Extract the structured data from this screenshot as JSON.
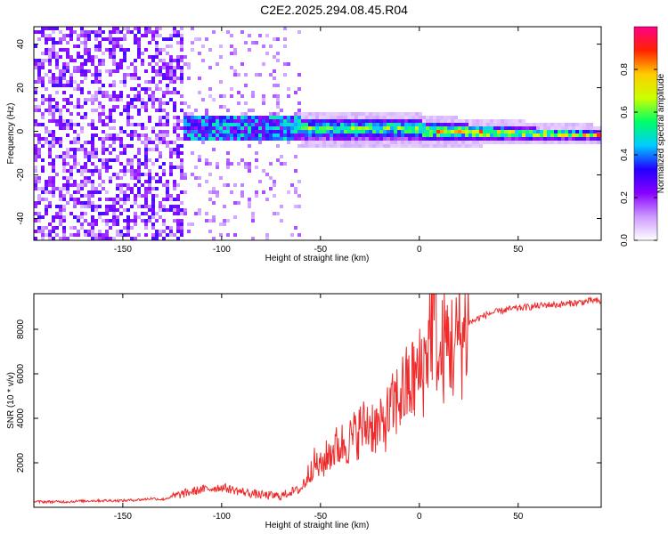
{
  "title": "C2E2.2025.294.08.45.R04",
  "colors": {
    "snr_line": "#ee2a2a",
    "axis": "#000000"
  },
  "chart_data": [
    {
      "type": "heatmap",
      "xlabel": "Height of straight line (km)",
      "ylabel": "Frequency (Hz)",
      "xlim": [
        -195,
        92
      ],
      "ylim": [
        -50,
        48
      ],
      "xticks": [
        -150,
        -100,
        -50,
        0,
        50
      ],
      "yticks": [
        -40,
        -20,
        0,
        20,
        40
      ],
      "colorbar": {
        "label": "Normalized spectral amplitude",
        "range": [
          0,
          1
        ],
        "ticks": [
          0.0,
          0.2,
          0.4,
          0.6,
          0.8
        ],
        "colormap": [
          "#ffffff",
          "#cc99ff",
          "#8800ff",
          "#2200ff",
          "#00ccff",
          "#00ff66",
          "#ccff00",
          "#ffcc00",
          "#ff2200",
          "#ff0088"
        ]
      },
      "description_regions": [
        {
          "x_range": [
            -195,
            -120
          ],
          "freq_range": [
            -50,
            48
          ],
          "amplitude": 0.15
        },
        {
          "x_range": [
            -120,
            -60
          ],
          "freq_range": [
            -10,
            10
          ],
          "amplitude": 0.35
        },
        {
          "x_range": [
            -60,
            0
          ],
          "freq_range": [
            -6,
            6
          ],
          "amplitude": 0.55
        },
        {
          "x_range": [
            0,
            92
          ],
          "freq_range": [
            -3,
            3
          ],
          "amplitude": 0.7
        }
      ]
    },
    {
      "type": "line",
      "xlabel": "Height of straight line (km)",
      "ylabel": "SNR (10 * v/v)",
      "xlim": [
        -195,
        92
      ],
      "ylim": [
        0,
        9600
      ],
      "xticks": [
        -150,
        -100,
        -50,
        0,
        50
      ],
      "yticks": [
        2000,
        4000,
        6000,
        8000
      ],
      "series": [
        {
          "name": "SNR",
          "x": [
            -195,
            -180,
            -165,
            -150,
            -140,
            -135,
            -130,
            -120,
            -110,
            -100,
            -90,
            -80,
            -70,
            -65,
            -60,
            -56,
            -54,
            -50,
            -45,
            -40,
            -35,
            -30,
            -25,
            -20,
            -15,
            -10,
            -5,
            0,
            3,
            5,
            8,
            10,
            12,
            15,
            18,
            20,
            22,
            25,
            28,
            30,
            35,
            40,
            45,
            50,
            55,
            60,
            65,
            70,
            75,
            80,
            85,
            88,
            92
          ],
          "y": [
            250,
            250,
            300,
            300,
            350,
            400,
            350,
            600,
            800,
            900,
            700,
            550,
            500,
            700,
            800,
            1500,
            2000,
            1800,
            2500,
            2800,
            3000,
            3500,
            3800,
            3500,
            4200,
            5000,
            5500,
            6000,
            6500,
            8000,
            9000,
            6000,
            7200,
            7500,
            7000,
            7800,
            7600,
            8300,
            8400,
            8500,
            8700,
            8800,
            8900,
            8950,
            9000,
            9050,
            9100,
            9100,
            9150,
            9200,
            9250,
            9300,
            9200
          ]
        }
      ]
    }
  ]
}
